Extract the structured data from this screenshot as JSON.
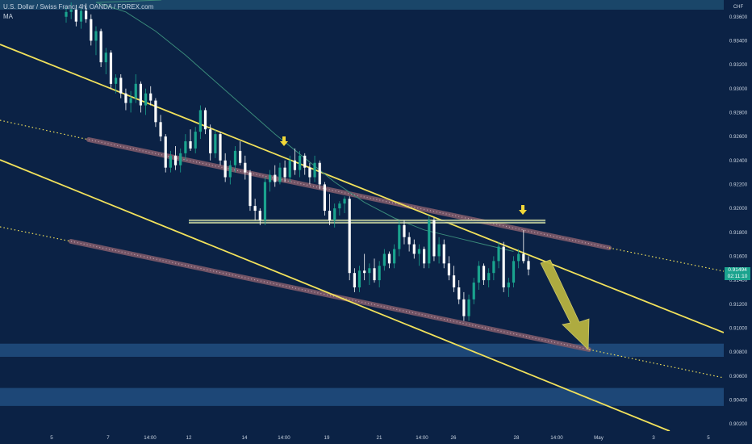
{
  "header": {
    "symbol_title": "U.S. Dollar / Swiss Franc, 4h, OANDA / FOREX.com",
    "indicator_label": "MA"
  },
  "chart_data": {
    "type": "candlestick",
    "currency_label": "CHF",
    "y_ticks": [
      "0.93600",
      "0.93400",
      "0.93200",
      "0.93000",
      "0.92800",
      "0.92600",
      "0.92400",
      "0.92200",
      "0.92000",
      "0.91800",
      "0.91600",
      "0.91400",
      "0.91200",
      "0.91000",
      "0.90800",
      "0.90600",
      "0.90400",
      "0.90200"
    ],
    "x_ticks": [
      "5",
      "7",
      "12",
      "14:00",
      "14",
      "14:00",
      "19",
      "21",
      "14:00",
      "26",
      "28",
      "14:00",
      "May",
      "3",
      "5"
    ],
    "last_price": "0.91494",
    "countdown": "02:11:10",
    "ylim": [
      0.9014,
      0.9374
    ],
    "candles": [
      [
        0.936,
        0.9368,
        0.9355,
        0.9364
      ],
      [
        0.9364,
        0.9372,
        0.9358,
        0.9366
      ],
      [
        0.9366,
        0.937,
        0.9352,
        0.9356
      ],
      [
        0.9356,
        0.9368,
        0.935,
        0.9365
      ],
      [
        0.9365,
        0.9371,
        0.9355,
        0.9358
      ],
      [
        0.9358,
        0.9362,
        0.9336,
        0.934
      ],
      [
        0.934,
        0.9352,
        0.9328,
        0.9348
      ],
      [
        0.9348,
        0.935,
        0.9318,
        0.9322
      ],
      [
        0.9322,
        0.9334,
        0.9312,
        0.933
      ],
      [
        0.933,
        0.9332,
        0.93,
        0.9304
      ],
      [
        0.9304,
        0.9312,
        0.9296,
        0.9309
      ],
      [
        0.9309,
        0.9312,
        0.9292,
        0.9296
      ],
      [
        0.9296,
        0.93,
        0.9282,
        0.9288
      ],
      [
        0.9288,
        0.9298,
        0.928,
        0.9292
      ],
      [
        0.9292,
        0.9312,
        0.9288,
        0.9304
      ],
      [
        0.9304,
        0.9306,
        0.928,
        0.9286
      ],
      [
        0.9286,
        0.93,
        0.9278,
        0.9296
      ],
      [
        0.9296,
        0.9302,
        0.9286,
        0.929
      ],
      [
        0.929,
        0.9292,
        0.9268,
        0.9272
      ],
      [
        0.9272,
        0.9278,
        0.9256,
        0.926
      ],
      [
        0.926,
        0.9262,
        0.923,
        0.9234
      ],
      [
        0.9234,
        0.9248,
        0.923,
        0.9244
      ],
      [
        0.9244,
        0.9252,
        0.9232,
        0.9236
      ],
      [
        0.9236,
        0.925,
        0.923,
        0.9246
      ],
      [
        0.9246,
        0.9262,
        0.924,
        0.9256
      ],
      [
        0.9256,
        0.9266,
        0.9248,
        0.925
      ],
      [
        0.925,
        0.9268,
        0.9246,
        0.9264
      ],
      [
        0.9264,
        0.9286,
        0.9258,
        0.9282
      ],
      [
        0.9282,
        0.9284,
        0.9262,
        0.9266
      ],
      [
        0.9266,
        0.927,
        0.924,
        0.9246
      ],
      [
        0.9246,
        0.9266,
        0.9242,
        0.9262
      ],
      [
        0.9262,
        0.9264,
        0.9236,
        0.924
      ],
      [
        0.924,
        0.9246,
        0.9222,
        0.9226
      ],
      [
        0.9226,
        0.924,
        0.922,
        0.9236
      ],
      [
        0.9236,
        0.9252,
        0.923,
        0.9248
      ],
      [
        0.9248,
        0.9256,
        0.9236,
        0.9238
      ],
      [
        0.9238,
        0.9244,
        0.9224,
        0.923
      ],
      [
        0.923,
        0.9232,
        0.9198,
        0.9202
      ],
      [
        0.9202,
        0.9208,
        0.919,
        0.9198
      ],
      [
        0.9198,
        0.92,
        0.9186,
        0.919
      ],
      [
        0.919,
        0.9226,
        0.9186,
        0.9222
      ],
      [
        0.9222,
        0.9232,
        0.9214,
        0.9228
      ],
      [
        0.9228,
        0.9236,
        0.9218,
        0.9222
      ],
      [
        0.9222,
        0.9238,
        0.922,
        0.9234
      ],
      [
        0.9234,
        0.924,
        0.9222,
        0.9226
      ],
      [
        0.9226,
        0.9244,
        0.9222,
        0.924
      ],
      [
        0.924,
        0.925,
        0.9228,
        0.9232
      ],
      [
        0.9232,
        0.9248,
        0.9226,
        0.9244
      ],
      [
        0.9244,
        0.9246,
        0.9228,
        0.9234
      ],
      [
        0.9234,
        0.9238,
        0.922,
        0.9226
      ],
      [
        0.9226,
        0.9244,
        0.9222,
        0.9238
      ],
      [
        0.9238,
        0.924,
        0.9216,
        0.922
      ],
      [
        0.922,
        0.9222,
        0.9194,
        0.9198
      ],
      [
        0.9198,
        0.9212,
        0.9186,
        0.919
      ],
      [
        0.919,
        0.9204,
        0.9184,
        0.92
      ],
      [
        0.92,
        0.9206,
        0.9194,
        0.9204
      ],
      [
        0.9204,
        0.921,
        0.9196,
        0.9208
      ],
      [
        0.9208,
        0.921,
        0.914,
        0.9146
      ],
      [
        0.9146,
        0.915,
        0.913,
        0.9134
      ],
      [
        0.9134,
        0.9152,
        0.913,
        0.9148
      ],
      [
        0.9148,
        0.9162,
        0.914,
        0.9146
      ],
      [
        0.9146,
        0.9154,
        0.9136,
        0.915
      ],
      [
        0.915,
        0.9158,
        0.9138,
        0.914
      ],
      [
        0.914,
        0.9156,
        0.9134,
        0.9152
      ],
      [
        0.9152,
        0.9166,
        0.9148,
        0.9162
      ],
      [
        0.9162,
        0.9164,
        0.915,
        0.9154
      ],
      [
        0.9154,
        0.917,
        0.915,
        0.9166
      ],
      [
        0.9166,
        0.919,
        0.916,
        0.9186
      ],
      [
        0.9186,
        0.919,
        0.917,
        0.9176
      ],
      [
        0.9176,
        0.918,
        0.9164,
        0.917
      ],
      [
        0.917,
        0.9174,
        0.9158,
        0.9162
      ],
      [
        0.9162,
        0.917,
        0.9152,
        0.9166
      ],
      [
        0.9166,
        0.9168,
        0.915,
        0.9154
      ],
      [
        0.9154,
        0.9194,
        0.915,
        0.919
      ],
      [
        0.919,
        0.9192,
        0.9156,
        0.916
      ],
      [
        0.916,
        0.9176,
        0.9154,
        0.917
      ],
      [
        0.917,
        0.9174,
        0.915,
        0.9154
      ],
      [
        0.9154,
        0.916,
        0.914,
        0.9144
      ],
      [
        0.9144,
        0.9152,
        0.913,
        0.9134
      ],
      [
        0.9134,
        0.914,
        0.912,
        0.9124
      ],
      [
        0.9124,
        0.913,
        0.9106,
        0.911
      ],
      [
        0.911,
        0.9128,
        0.9106,
        0.9124
      ],
      [
        0.9124,
        0.9142,
        0.912,
        0.9138
      ],
      [
        0.9138,
        0.9156,
        0.9132,
        0.9152
      ],
      [
        0.9152,
        0.9154,
        0.9136,
        0.914
      ],
      [
        0.914,
        0.915,
        0.9134,
        0.9146
      ],
      [
        0.9146,
        0.916,
        0.914,
        0.9156
      ],
      [
        0.9156,
        0.9172,
        0.915,
        0.9168
      ],
      [
        0.9168,
        0.9172,
        0.913,
        0.9134
      ],
      [
        0.9134,
        0.9142,
        0.9126,
        0.9138
      ],
      [
        0.9138,
        0.916,
        0.9134,
        0.9156
      ],
      [
        0.9156,
        0.9166,
        0.915,
        0.9162
      ],
      [
        0.9162,
        0.9182,
        0.9154,
        0.9156
      ],
      [
        0.9156,
        0.916,
        0.9144,
        0.9149
      ]
    ],
    "moving_average": [
      [
        0.9374,
        0.8
      ],
      [
        0.9372,
        6
      ],
      [
        0.9364,
        12
      ],
      [
        0.9348,
        18
      ],
      [
        0.9328,
        24
      ],
      [
        0.9306,
        30
      ],
      [
        0.9284,
        36
      ],
      [
        0.9262,
        42
      ],
      [
        0.9242,
        48
      ],
      [
        0.9222,
        54
      ],
      [
        0.9205,
        60
      ],
      [
        0.9192,
        66
      ],
      [
        0.9182,
        72
      ],
      [
        0.9176,
        78
      ],
      [
        0.917,
        84
      ],
      [
        0.9164,
        90
      ]
    ],
    "horizontal_level": 0.9189,
    "demand_zones": [
      [
        0.9076,
        0.9087
      ],
      [
        0.9035,
        0.905
      ]
    ]
  },
  "colors": {
    "background": "#0b2245",
    "bull_candle": "#1aa38e",
    "bear_candle": "#ffffff",
    "trendline": "#f1e15b",
    "channel_band": "#7e5a6a",
    "zone": "#1f4a7a",
    "arrow": "#b7b340",
    "moving_average": "#3a8a7a",
    "price_tag": "#1aa38e"
  }
}
